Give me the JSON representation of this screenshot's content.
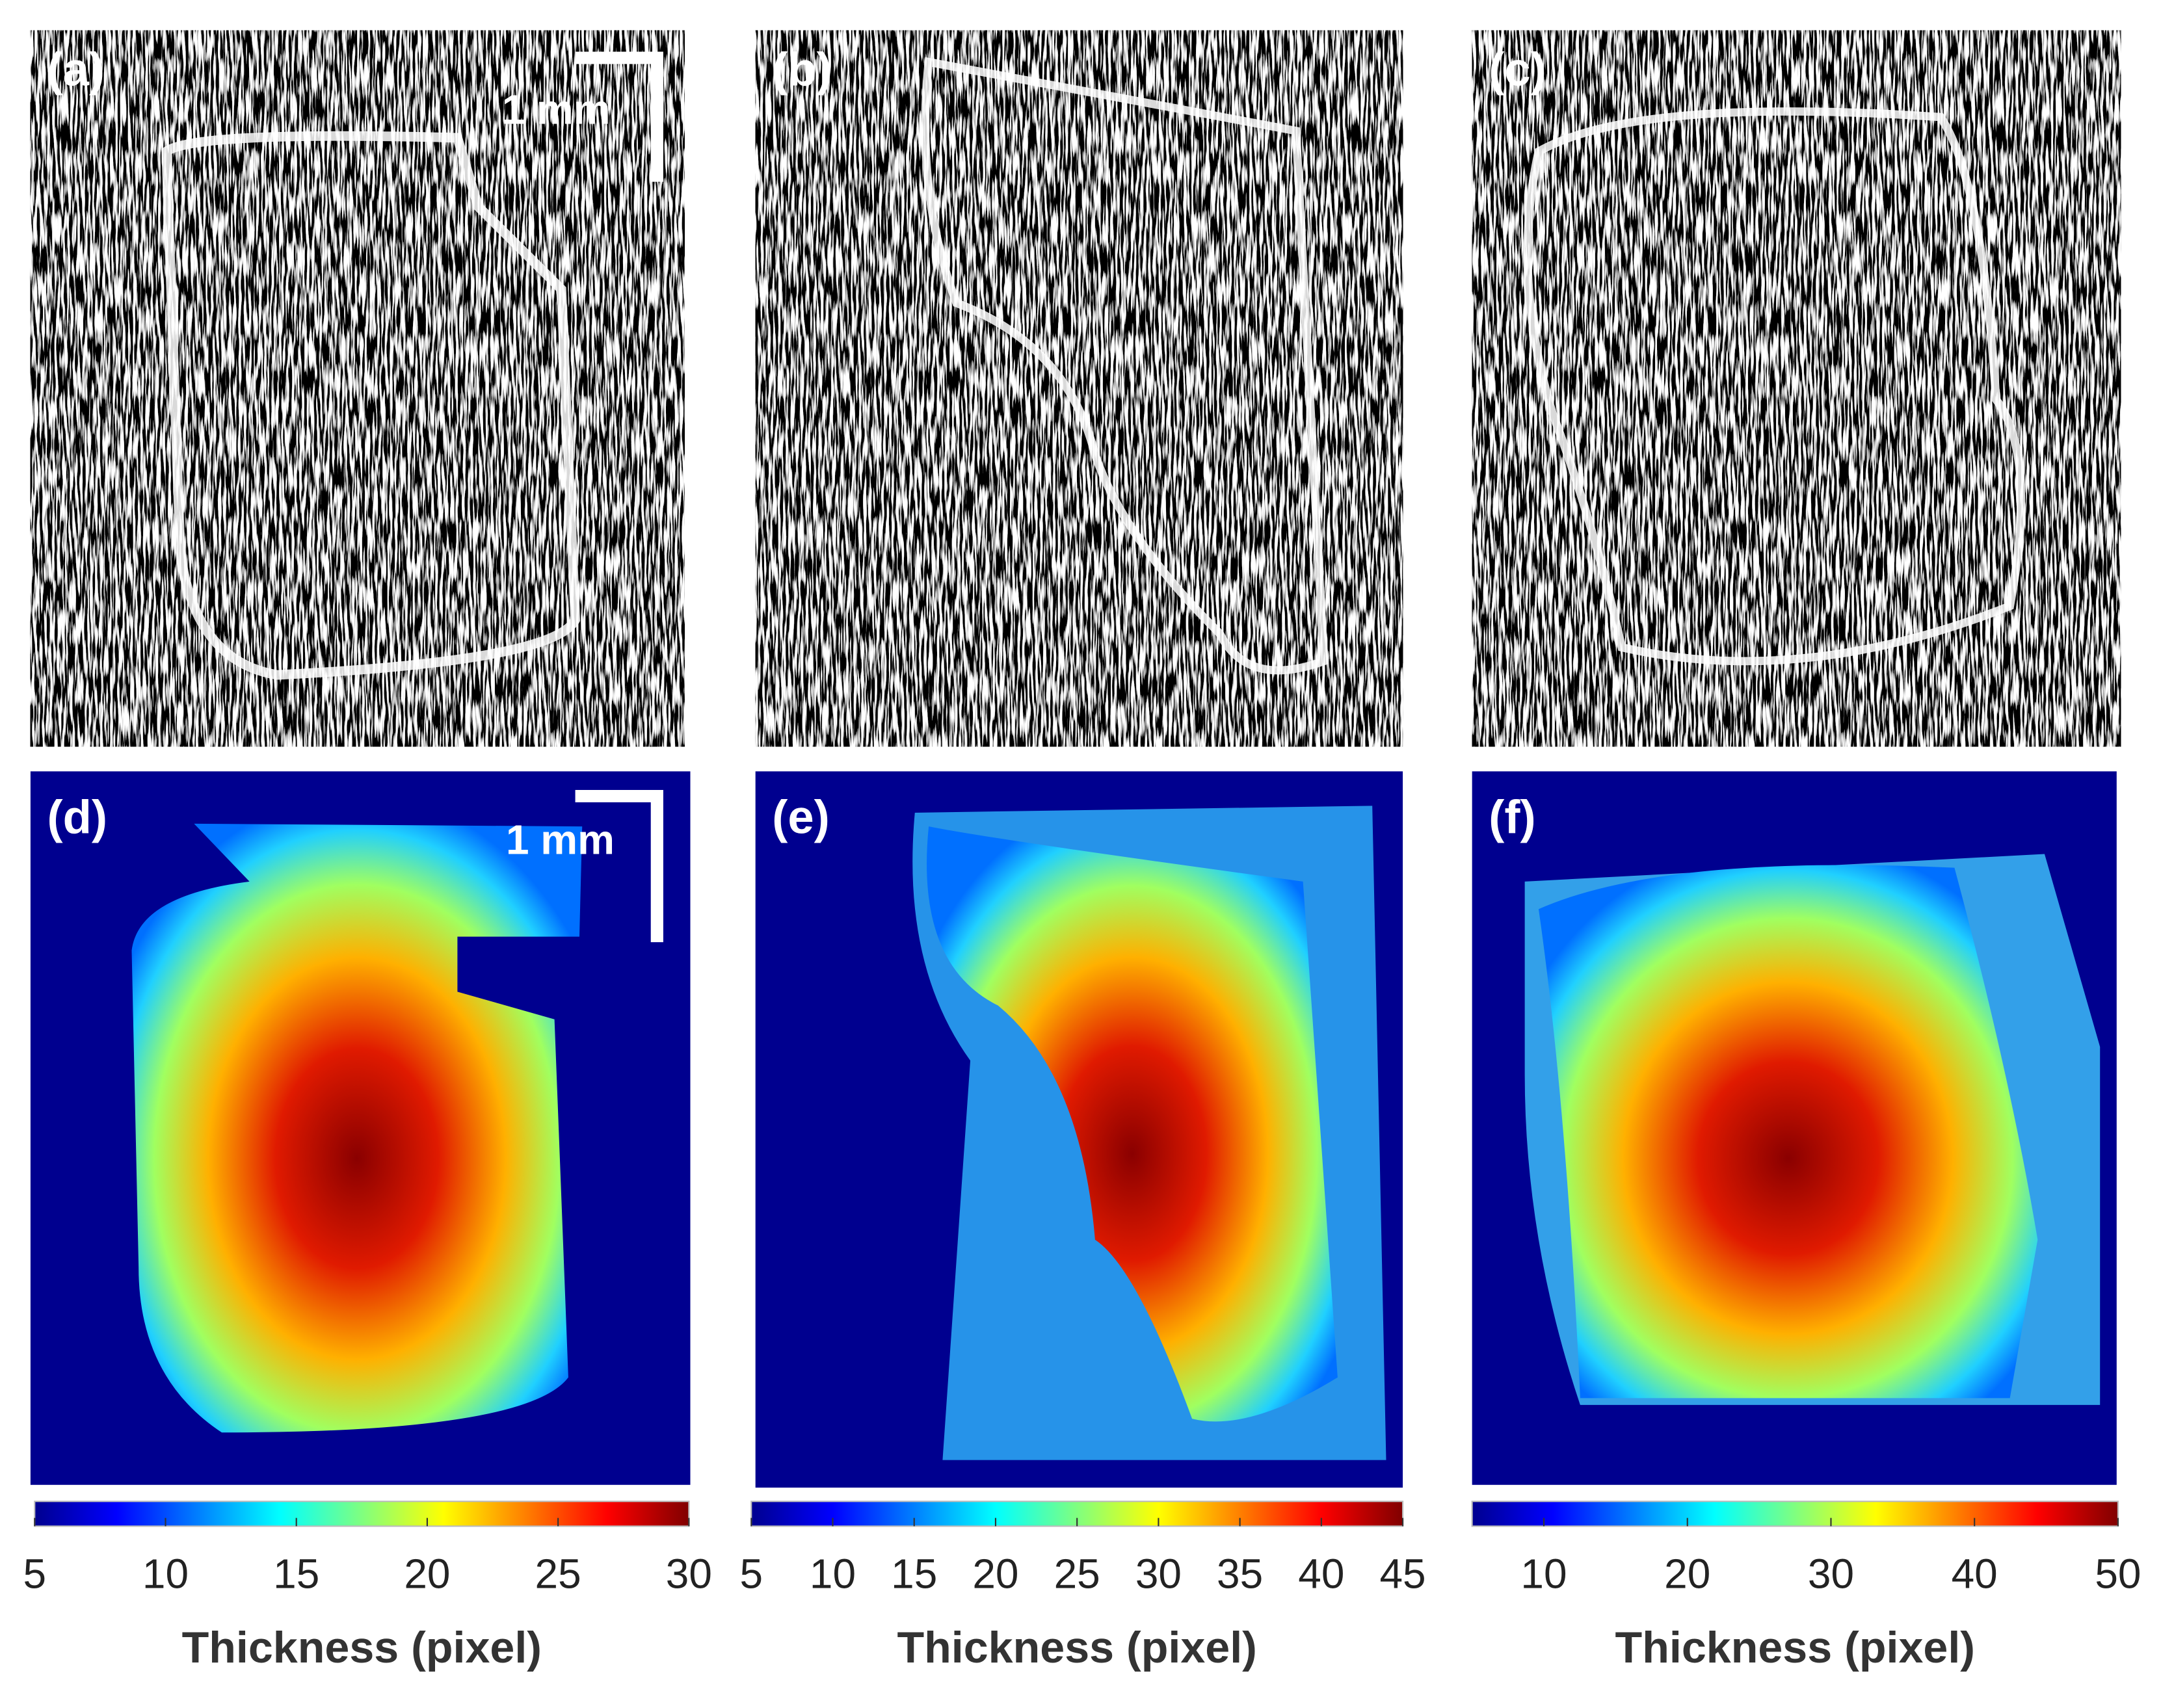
{
  "panels": [
    {
      "label": "(a)"
    },
    {
      "label": "(b)"
    },
    {
      "label": "(c)"
    },
    {
      "label": "(d)"
    },
    {
      "label": "(e)"
    },
    {
      "label": "(f)"
    }
  ],
  "scale_bars": [
    {
      "label": "1 mm"
    },
    {
      "label": "1 mm"
    }
  ],
  "colorbars": [
    {
      "lim": [
        5,
        30
      ],
      "ticks": [
        5,
        10,
        15,
        20,
        25,
        30
      ],
      "label": "Thickness (pixel)"
    },
    {
      "lim": [
        5,
        45
      ],
      "ticks": [
        5,
        10,
        15,
        20,
        25,
        30,
        35,
        40,
        45
      ],
      "label": "Thickness (pixel)"
    },
    {
      "lim": [
        5,
        50
      ],
      "ticks": [
        10,
        20,
        30,
        40,
        50
      ],
      "label": "Thickness (pixel)"
    }
  ]
}
